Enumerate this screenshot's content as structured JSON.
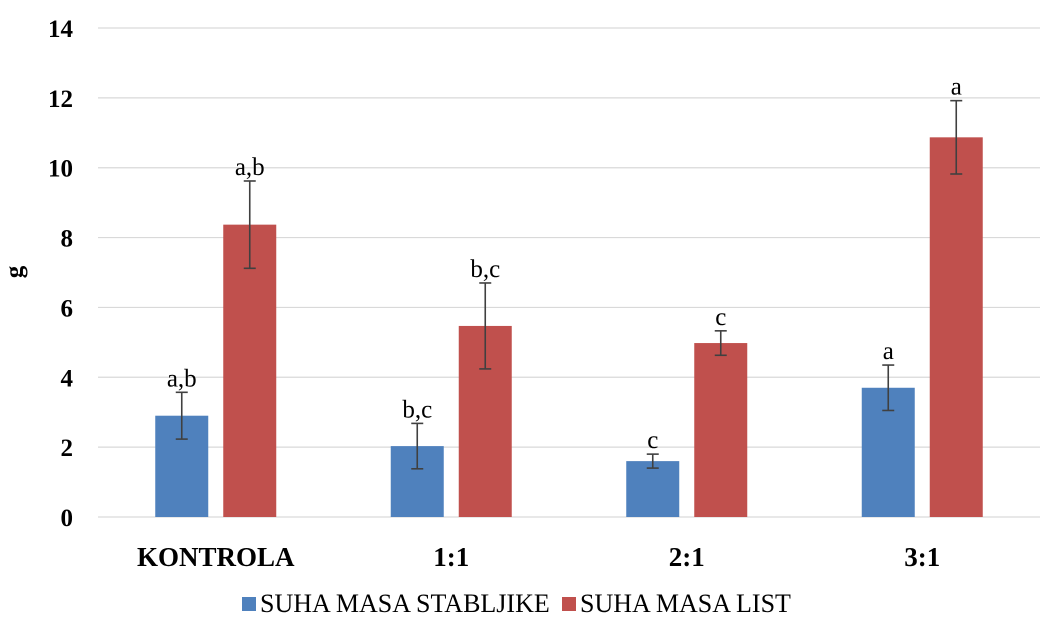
{
  "chart_data": {
    "type": "bar",
    "title": "",
    "xlabel": "",
    "ylabel": "g",
    "ylim": [
      0,
      14
    ],
    "yticks": [
      "0",
      "2",
      "4",
      "6",
      "8",
      "10",
      "12",
      "14"
    ],
    "grid": true,
    "legend_position": "bottom",
    "categories": [
      "KONTROLA",
      "1:1",
      "2:1",
      "3:1"
    ],
    "series": [
      {
        "name": "SUHA MASA STABLJIKE",
        "color": "#4f81bd",
        "values": [
          2.9,
          2.03,
          1.6,
          3.7
        ],
        "errors": [
          0.67,
          0.65,
          0.2,
          0.65
        ],
        "labels": [
          "a,b",
          "b,c",
          "c",
          "a"
        ]
      },
      {
        "name": "SUHA MASA LIST",
        "color": "#c0504d",
        "values": [
          8.37,
          5.47,
          4.98,
          10.87
        ],
        "errors": [
          1.25,
          1.23,
          0.35,
          1.05
        ],
        "labels": [
          "a,b",
          "b,c",
          "c",
          "a"
        ]
      }
    ]
  }
}
